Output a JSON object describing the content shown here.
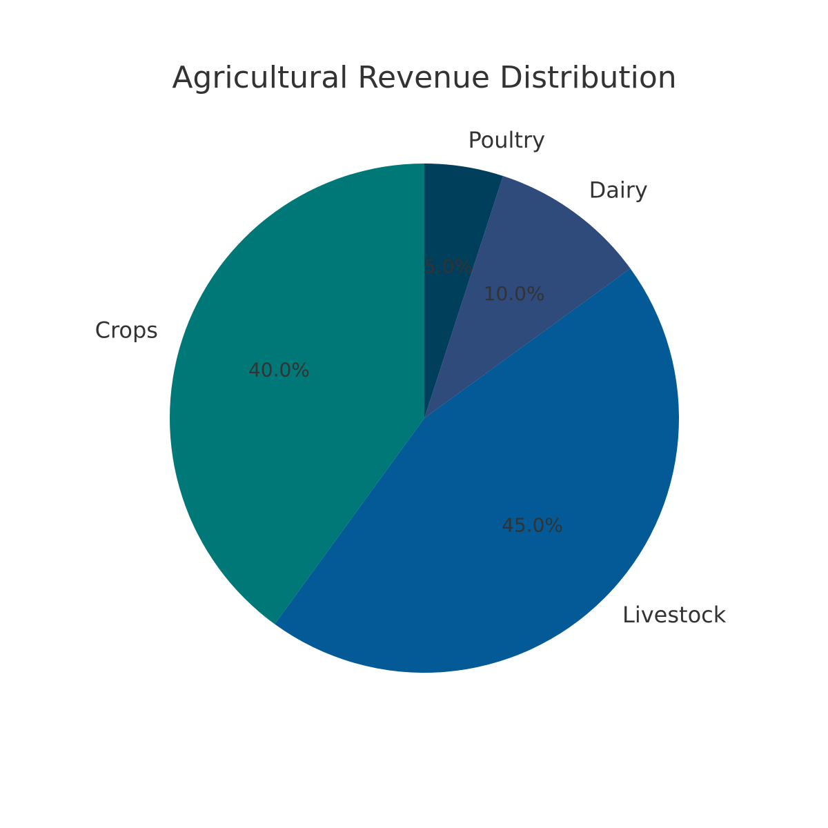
{
  "chart_data": {
    "type": "pie",
    "title": "Agricultural Revenue Distribution",
    "start_angle_deg": 90,
    "direction": "clockwise",
    "slices": [
      {
        "label": "Poultry",
        "value": 5.0,
        "pct_label": "5.0%",
        "color": "#003f5c"
      },
      {
        "label": "Dairy",
        "value": 10.0,
        "pct_label": "10.0%",
        "color": "#2f4b7c"
      },
      {
        "label": "Livestock",
        "value": 45.0,
        "pct_label": "45.0%",
        "color": "#035a96"
      },
      {
        "label": "Crops",
        "value": 40.0,
        "pct_label": "40.0%",
        "color": "#007878"
      }
    ]
  }
}
